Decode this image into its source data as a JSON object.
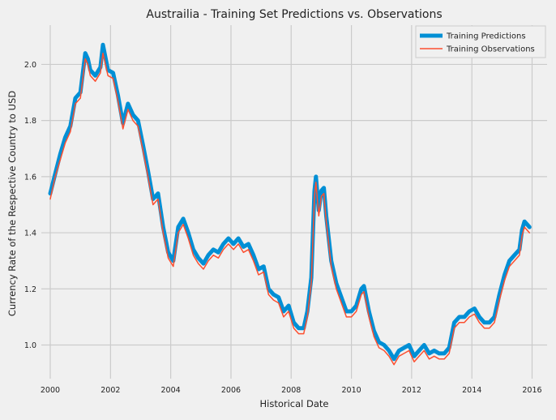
{
  "chart_data": {
    "type": "line",
    "title": "Austrailia - Training Set Predictions vs. Observations",
    "xlabel": "Historical Date",
    "ylabel": "Currency Rate of the Respective Country to USD",
    "xlim": [
      "1999-09-15",
      "2016-07-01"
    ],
    "ylim": [
      0.88,
      2.14
    ],
    "x_ticks": [
      "2000",
      "2002",
      "2004",
      "2006",
      "2008",
      "2010",
      "2012",
      "2014",
      "2016"
    ],
    "y_ticks": [
      "1.0",
      "1.2",
      "1.4",
      "1.6",
      "1.8",
      "2.0"
    ],
    "grid": true,
    "legend_position": "top-right",
    "series": [
      {
        "name": "Training Predictions",
        "color": "#008fd5",
        "role": "thick",
        "x": [
          "2000-01-01",
          "2000-03-01",
          "2000-05-01",
          "2000-07-01",
          "2000-09-01",
          "2000-11-01",
          "2001-01-01",
          "2001-03-01",
          "2001-04-01",
          "2001-05-01",
          "2001-07-01",
          "2001-09-01",
          "2001-10-01",
          "2001-12-01",
          "2002-02-01",
          "2002-04-01",
          "2002-06-01",
          "2002-08-01",
          "2002-10-01",
          "2002-12-01",
          "2003-02-01",
          "2003-04-01",
          "2003-06-01",
          "2003-08-01",
          "2003-10-01",
          "2003-12-01",
          "2004-02-01",
          "2004-04-01",
          "2004-06-01",
          "2004-08-01",
          "2004-10-01",
          "2004-12-01",
          "2005-02-01",
          "2005-04-01",
          "2005-06-01",
          "2005-08-01",
          "2005-10-01",
          "2005-12-01",
          "2006-02-01",
          "2006-04-01",
          "2006-06-01",
          "2006-08-01",
          "2006-10-01",
          "2006-12-01",
          "2007-02-01",
          "2007-04-01",
          "2007-06-01",
          "2007-08-01",
          "2007-10-01",
          "2007-12-01",
          "2008-02-01",
          "2008-04-01",
          "2008-06-01",
          "2008-07-15",
          "2008-09-01",
          "2008-10-10",
          "2008-10-27",
          "2008-12-01",
          "2009-01-01",
          "2009-02-01",
          "2009-03-01",
          "2009-05-01",
          "2009-07-01",
          "2009-09-01",
          "2009-11-01",
          "2010-01-01",
          "2010-03-01",
          "2010-05-01",
          "2010-06-01",
          "2010-08-01",
          "2010-10-01",
          "2010-12-01",
          "2011-02-01",
          "2011-04-01",
          "2011-06-01",
          "2011-08-01",
          "2011-10-01",
          "2011-12-01",
          "2012-02-01",
          "2012-04-01",
          "2012-06-01",
          "2012-08-01",
          "2012-10-01",
          "2012-12-01",
          "2013-02-01",
          "2013-04-01",
          "2013-06-01",
          "2013-08-01",
          "2013-10-01",
          "2013-12-01",
          "2014-02-01",
          "2014-04-01",
          "2014-06-01",
          "2014-08-01",
          "2014-10-01",
          "2014-12-01",
          "2015-02-01",
          "2015-04-01",
          "2015-06-01",
          "2015-08-01",
          "2015-09-01",
          "2015-10-01",
          "2015-12-01"
        ],
        "y": [
          1.54,
          1.61,
          1.68,
          1.74,
          1.78,
          1.88,
          1.9,
          2.04,
          2.02,
          1.98,
          1.96,
          1.99,
          2.07,
          1.98,
          1.97,
          1.89,
          1.79,
          1.86,
          1.82,
          1.8,
          1.71,
          1.62,
          1.52,
          1.54,
          1.42,
          1.33,
          1.3,
          1.42,
          1.45,
          1.4,
          1.34,
          1.31,
          1.29,
          1.32,
          1.34,
          1.33,
          1.36,
          1.38,
          1.36,
          1.38,
          1.35,
          1.36,
          1.32,
          1.27,
          1.28,
          1.2,
          1.18,
          1.17,
          1.12,
          1.14,
          1.08,
          1.06,
          1.06,
          1.12,
          1.24,
          1.55,
          1.6,
          1.48,
          1.55,
          1.56,
          1.46,
          1.3,
          1.22,
          1.17,
          1.12,
          1.12,
          1.14,
          1.2,
          1.21,
          1.12,
          1.05,
          1.01,
          1.0,
          0.98,
          0.95,
          0.98,
          0.99,
          1.0,
          0.96,
          0.98,
          1.0,
          0.97,
          0.98,
          0.97,
          0.97,
          0.99,
          1.08,
          1.1,
          1.1,
          1.12,
          1.13,
          1.1,
          1.08,
          1.08,
          1.1,
          1.18,
          1.25,
          1.3,
          1.32,
          1.34,
          1.41,
          1.44,
          1.42
        ]
      },
      {
        "name": "Training Observations",
        "color": "#fc4f30",
        "role": "thin",
        "x": [
          "2000-01-01",
          "2000-03-01",
          "2000-05-01",
          "2000-07-01",
          "2000-09-01",
          "2000-11-01",
          "2001-01-01",
          "2001-03-01",
          "2001-04-01",
          "2001-05-01",
          "2001-07-01",
          "2001-09-01",
          "2001-10-01",
          "2001-12-01",
          "2002-02-01",
          "2002-04-01",
          "2002-06-01",
          "2002-08-01",
          "2002-10-01",
          "2002-12-01",
          "2003-02-01",
          "2003-04-01",
          "2003-06-01",
          "2003-08-01",
          "2003-10-01",
          "2003-12-01",
          "2004-02-01",
          "2004-04-01",
          "2004-06-01",
          "2004-08-01",
          "2004-10-01",
          "2004-12-01",
          "2005-02-01",
          "2005-04-01",
          "2005-06-01",
          "2005-08-01",
          "2005-10-01",
          "2005-12-01",
          "2006-02-01",
          "2006-04-01",
          "2006-06-01",
          "2006-08-01",
          "2006-10-01",
          "2006-12-01",
          "2007-02-01",
          "2007-04-01",
          "2007-06-01",
          "2007-08-01",
          "2007-10-01",
          "2007-12-01",
          "2008-02-01",
          "2008-04-01",
          "2008-06-01",
          "2008-07-15",
          "2008-09-01",
          "2008-10-10",
          "2008-10-27",
          "2008-12-01",
          "2009-01-01",
          "2009-02-01",
          "2009-03-01",
          "2009-05-01",
          "2009-07-01",
          "2009-09-01",
          "2009-11-01",
          "2010-01-01",
          "2010-03-01",
          "2010-05-01",
          "2010-06-01",
          "2010-08-01",
          "2010-10-01",
          "2010-12-01",
          "2011-02-01",
          "2011-04-01",
          "2011-06-01",
          "2011-08-01",
          "2011-10-01",
          "2011-12-01",
          "2012-02-01",
          "2012-04-01",
          "2012-06-01",
          "2012-08-01",
          "2012-10-01",
          "2012-12-01",
          "2013-02-01",
          "2013-04-01",
          "2013-06-01",
          "2013-08-01",
          "2013-10-01",
          "2013-12-01",
          "2014-02-01",
          "2014-04-01",
          "2014-06-01",
          "2014-08-01",
          "2014-10-01",
          "2014-12-01",
          "2015-02-01",
          "2015-04-01",
          "2015-06-01",
          "2015-08-01",
          "2015-09-01",
          "2015-10-01",
          "2015-12-01"
        ],
        "y": [
          1.52,
          1.6,
          1.66,
          1.72,
          1.76,
          1.86,
          1.88,
          2.02,
          2.0,
          1.96,
          1.94,
          1.97,
          2.04,
          1.96,
          1.95,
          1.87,
          1.77,
          1.84,
          1.8,
          1.78,
          1.69,
          1.6,
          1.5,
          1.52,
          1.4,
          1.31,
          1.28,
          1.4,
          1.43,
          1.38,
          1.32,
          1.29,
          1.27,
          1.3,
          1.32,
          1.31,
          1.34,
          1.36,
          1.34,
          1.36,
          1.33,
          1.34,
          1.3,
          1.25,
          1.26,
          1.18,
          1.16,
          1.15,
          1.1,
          1.12,
          1.06,
          1.04,
          1.04,
          1.1,
          1.22,
          1.53,
          1.58,
          1.46,
          1.53,
          1.54,
          1.44,
          1.28,
          1.2,
          1.15,
          1.1,
          1.1,
          1.12,
          1.18,
          1.19,
          1.1,
          1.03,
          0.99,
          0.98,
          0.96,
          0.93,
          0.96,
          0.97,
          0.98,
          0.94,
          0.96,
          0.98,
          0.95,
          0.96,
          0.95,
          0.95,
          0.97,
          1.06,
          1.08,
          1.08,
          1.1,
          1.11,
          1.08,
          1.06,
          1.06,
          1.08,
          1.16,
          1.23,
          1.28,
          1.3,
          1.32,
          1.39,
          1.42,
          1.4
        ]
      }
    ]
  }
}
